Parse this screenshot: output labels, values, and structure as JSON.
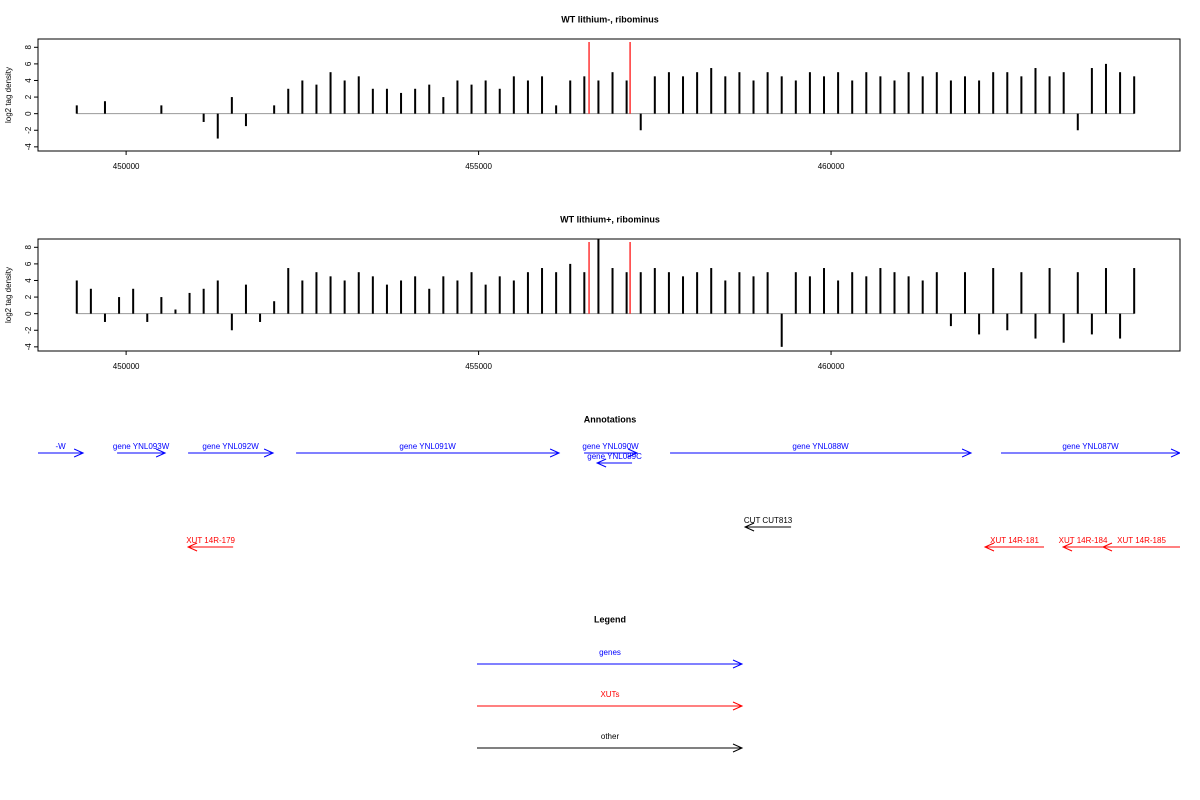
{
  "chart_data": [
    {
      "type": "bar",
      "title": "WT lithium-, ribominus",
      "y_label": "log2 tag density",
      "color": "#000000",
      "x": [
        449300,
        449500,
        449700,
        449900,
        450100,
        450300,
        450500,
        450700,
        450900,
        451100,
        451300,
        451500,
        451700,
        451900,
        452100,
        452300,
        452500,
        452700,
        452900,
        453100,
        453300,
        453500,
        453700,
        453900,
        454100,
        454300,
        454500,
        454700,
        454900,
        455100,
        455300,
        455500,
        455700,
        455900,
        456100,
        456300,
        456500,
        456700,
        456900,
        457100,
        457300,
        457500,
        457700,
        457900,
        458100,
        458300,
        458500,
        458700,
        458900,
        459100,
        459300,
        459500,
        459700,
        459900,
        460100,
        460300,
        460500,
        460700,
        460900,
        461100,
        461300,
        461500,
        461700,
        461900,
        462100,
        462300,
        462500,
        462700,
        462900,
        463100,
        463300,
        463500,
        463700,
        463900,
        464100,
        464300
      ],
      "values": [
        1,
        0,
        1.5,
        0,
        0,
        0,
        1,
        0,
        0,
        -1,
        -3,
        2,
        -1.5,
        0,
        1,
        3,
        4,
        3.5,
        5,
        4,
        4.5,
        3,
        3,
        2.5,
        3,
        3.5,
        2,
        4,
        3.5,
        4,
        3,
        4.5,
        4,
        4.5,
        1,
        4,
        4.5,
        4,
        5,
        4,
        -2,
        4.5,
        5,
        4.5,
        5,
        5.5,
        4.5,
        5,
        4,
        5,
        4.5,
        4,
        5,
        4.5,
        5,
        4,
        5,
        4.5,
        4,
        5,
        4.5,
        5,
        4,
        4.5,
        4,
        5,
        5,
        4.5,
        5.5,
        4.5,
        5,
        -2,
        5.5,
        6,
        5,
        4.5
      ],
      "highlights": [
        456567,
        457149
      ],
      "highlight_color": "#ff0000",
      "xlim": [
        448750,
        464950
      ],
      "xticks": [
        450000,
        455000,
        460000
      ],
      "ylim": [
        -4.5,
        9
      ],
      "yticks": [
        -4,
        -2,
        0,
        2,
        4,
        6,
        8
      ]
    },
    {
      "type": "bar",
      "title": "WT lithium+, ribominus",
      "y_label": "log2 tag density",
      "color": "#000000",
      "x": [
        449300,
        449500,
        449700,
        449900,
        450100,
        450300,
        450500,
        450700,
        450900,
        451100,
        451300,
        451500,
        451700,
        451900,
        452100,
        452300,
        452500,
        452700,
        452900,
        453100,
        453300,
        453500,
        453700,
        453900,
        454100,
        454300,
        454500,
        454700,
        454900,
        455100,
        455300,
        455500,
        455700,
        455900,
        456100,
        456300,
        456500,
        456700,
        456900,
        457100,
        457300,
        457500,
        457700,
        457900,
        458100,
        458300,
        458500,
        458700,
        458900,
        459100,
        459300,
        459500,
        459700,
        459900,
        460100,
        460300,
        460500,
        460700,
        460900,
        461100,
        461300,
        461500,
        461700,
        461900,
        462100,
        462300,
        462500,
        462700,
        462900,
        463100,
        463300,
        463500,
        463700,
        463900,
        464100,
        464300
      ],
      "values": [
        4,
        3,
        -1,
        2,
        3,
        -1,
        2,
        0.5,
        2.5,
        3,
        4,
        -2,
        3.5,
        -1,
        1.5,
        5.5,
        4,
        5,
        4.5,
        4,
        5,
        4.5,
        3.5,
        4,
        4.5,
        3,
        4.5,
        4,
        5,
        3.5,
        4.5,
        4,
        5,
        5.5,
        5,
        6,
        5,
        9,
        5.5,
        5,
        5,
        5.5,
        5,
        4.5,
        5,
        5.5,
        4,
        5,
        4.5,
        5,
        -4,
        5,
        4.5,
        5.5,
        4,
        5,
        4.5,
        5.5,
        5,
        4.5,
        4,
        5,
        -1.5,
        5,
        -2.5,
        5.5,
        -2,
        5,
        -3,
        5.5,
        -3.5,
        5,
        -2.5,
        5.5,
        -3,
        5.5
      ],
      "highlights": [
        456567,
        457149
      ],
      "highlight_color": "#ff0000",
      "xlim": [
        448750,
        464950
      ],
      "xticks": [
        450000,
        455000,
        460000
      ],
      "ylim": [
        -4.5,
        9
      ],
      "yticks": [
        -4,
        -2,
        0,
        2,
        4,
        6,
        8
      ]
    }
  ],
  "annotations": {
    "title": "Annotations",
    "xlim": [
      448750,
      464950
    ],
    "features": [
      {
        "label": "-W",
        "start": 448750,
        "end": 449390,
        "strand": "+",
        "color": "#0000ff"
      },
      {
        "label": "gene YNL093W",
        "start": 449872,
        "end": 450553,
        "strand": "+",
        "color": "#0000ff"
      },
      {
        "label": "gene YNL092W",
        "start": 450879,
        "end": 452085,
        "strand": "+",
        "color": "#0000ff"
      },
      {
        "label": "gene YNL091W",
        "start": 452411,
        "end": 456142,
        "strand": "+",
        "color": "#0000ff"
      },
      {
        "label": "gene YNL090W",
        "start": 456496,
        "end": 457248,
        "strand": "+",
        "color": "#0000ff"
      },
      {
        "label": "gene YNL089C",
        "start": 456681,
        "end": 457177,
        "strand": "-",
        "color": "#0000ff"
      },
      {
        "label": "gene YNL088W",
        "start": 457716,
        "end": 461986,
        "strand": "+",
        "color": "#0000ff"
      },
      {
        "label": "gene YNL087W",
        "start": 462411,
        "end": 464950,
        "strand": "+",
        "color": "#0000ff"
      },
      {
        "label": "CUT CUT813",
        "start": 458780,
        "end": 459433,
        "strand": "-",
        "color": "#000000"
      },
      {
        "label": "XUT 14R-179",
        "start": 450879,
        "end": 451518,
        "strand": "-",
        "color": "#ff0000"
      },
      {
        "label": "XUT 14R-181",
        "start": 462184,
        "end": 463021,
        "strand": "-",
        "color": "#ff0000"
      },
      {
        "label": "XUT 14R-184",
        "start": 463291,
        "end": 463858,
        "strand": "-",
        "color": "#ff0000"
      },
      {
        "label": "XUT 14R-185",
        "start": 463858,
        "end": 464950,
        "strand": "-",
        "color": "#ff0000"
      }
    ]
  },
  "legend": {
    "title": "Legend",
    "items": [
      {
        "label": "genes",
        "color": "#0000ff"
      },
      {
        "label": "XUTs",
        "color": "#ff0000"
      },
      {
        "label": "other",
        "color": "#000000"
      }
    ]
  }
}
